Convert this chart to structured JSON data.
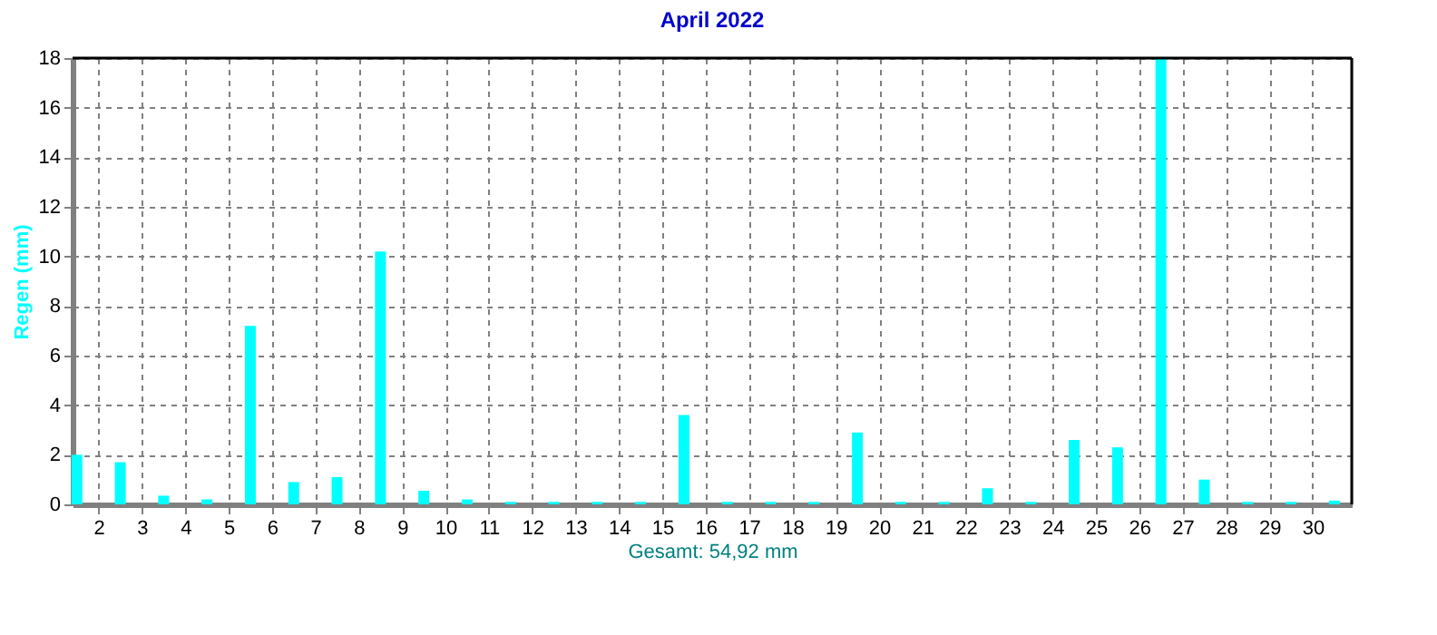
{
  "chart_data": {
    "type": "bar",
    "title": "April 2022",
    "ylabel": "Regen  (mm)",
    "xlabel": "Gesamt: 54,92 mm",
    "x": [
      1.5,
      2.5,
      3.5,
      4.5,
      5.5,
      6.5,
      7.5,
      8.5,
      9.5,
      10.5,
      11.5,
      12.5,
      13.5,
      14.5,
      15.5,
      16.5,
      17.5,
      18.5,
      19.5,
      20.5,
      21.5,
      22.5,
      23.5,
      24.5,
      25.5,
      26.5,
      27.5,
      28.5,
      29.5,
      30.5
    ],
    "values": [
      2.0,
      1.7,
      0.35,
      0.2,
      7.2,
      0.9,
      1.1,
      10.2,
      0.55,
      0.2,
      0.1,
      0.1,
      0.1,
      0.1,
      3.6,
      0.1,
      0.1,
      0.1,
      2.9,
      0.1,
      0.1,
      0.65,
      0.1,
      2.6,
      2.3,
      18.0,
      1.0,
      0.1,
      0.1,
      0.15
    ],
    "color": "#00ffff",
    "xlim": [
      1.4,
      30.9
    ],
    "xticks": [
      2,
      3,
      4,
      5,
      6,
      7,
      8,
      9,
      10,
      11,
      12,
      13,
      14,
      15,
      16,
      17,
      18,
      19,
      20,
      21,
      22,
      23,
      24,
      25,
      26,
      27,
      28,
      29,
      30
    ],
    "ylim": [
      0,
      18
    ],
    "yticks": [
      0,
      2,
      4,
      6,
      8,
      10,
      12,
      14,
      16,
      18
    ],
    "grid": true
  }
}
